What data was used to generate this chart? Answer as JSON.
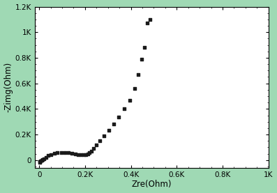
{
  "title": "",
  "xlabel": "Zre(Ohm)",
  "ylabel": "-Zimg(Ohm)",
  "xlim": [
    -20,
    1000
  ],
  "ylim": [
    -60,
    1200
  ],
  "xticks": [
    0,
    200,
    400,
    600,
    800,
    1000
  ],
  "yticks": [
    0,
    200,
    400,
    600,
    800,
    1000,
    1200
  ],
  "xtick_labels": [
    "0",
    "0.2K",
    "0.4K",
    "0.6K",
    "0.8K",
    "1K"
  ],
  "ytick_labels": [
    "0",
    "0.2K",
    "0.4K",
    "0.6K",
    "0.8K",
    "1K",
    "1.2K"
  ],
  "marker_color": "#1a1a1a",
  "marker": "s",
  "marker_size": 3.5,
  "background_color": "#ffffff",
  "border_color": "#9fd9b4",
  "zre": [
    2,
    4,
    7,
    11,
    16,
    22,
    30,
    40,
    52,
    65,
    80,
    96,
    112,
    128,
    143,
    157,
    170,
    182,
    193,
    203,
    212,
    220,
    228,
    238,
    250,
    265,
    283,
    303,
    325,
    348,
    372,
    395,
    415,
    432,
    447,
    460,
    472,
    483
  ],
  "zimg": [
    -15,
    -10,
    -5,
    0,
    5,
    12,
    22,
    35,
    45,
    52,
    57,
    60,
    60,
    58,
    54,
    49,
    44,
    41,
    40,
    42,
    48,
    58,
    72,
    92,
    118,
    150,
    188,
    232,
    282,
    338,
    400,
    470,
    560,
    670,
    790,
    880,
    1070,
    1100
  ]
}
